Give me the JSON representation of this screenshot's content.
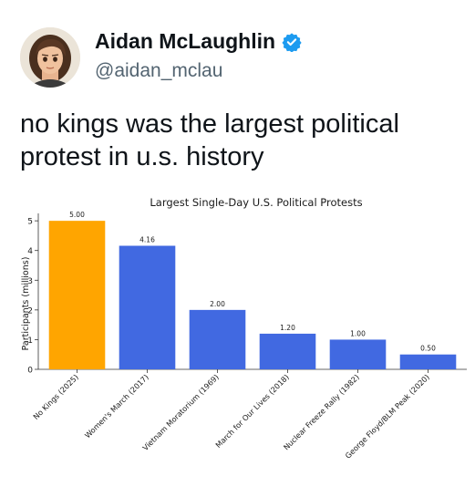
{
  "post": {
    "display_name": "Aidan McLaughlin",
    "handle": "@aidan_mclau",
    "text": "no kings was the largest political\nprotest in u.s. history",
    "verified_icon": "verified-badge-icon",
    "verified_color": "#1d9bf0"
  },
  "chart_data": {
    "type": "bar",
    "title": "Largest Single-Day U.S. Political Protests",
    "xlabel": "",
    "ylabel": "Participants (millions)",
    "categories": [
      "No Kings (2025)",
      "Women's March (2017)",
      "Vietnam Moratorium (1969)",
      "March for Our Lives (2018)",
      "Nuclear Freeze Rally (1982)",
      "George Floyd/BLM Peak (2020)"
    ],
    "values": [
      5.0,
      4.16,
      2.0,
      1.2,
      1.0,
      0.5
    ],
    "value_labels": [
      "5.00",
      "4.16",
      "2.00",
      "1.20",
      "1.00",
      "0.50"
    ],
    "bar_colors": [
      "#ffa500",
      "#4169e1",
      "#4169e1",
      "#4169e1",
      "#4169e1",
      "#4169e1"
    ],
    "yticks": [
      0,
      1,
      2,
      3,
      4,
      5
    ],
    "ylim": [
      0,
      5.25
    ],
    "grid": false
  }
}
